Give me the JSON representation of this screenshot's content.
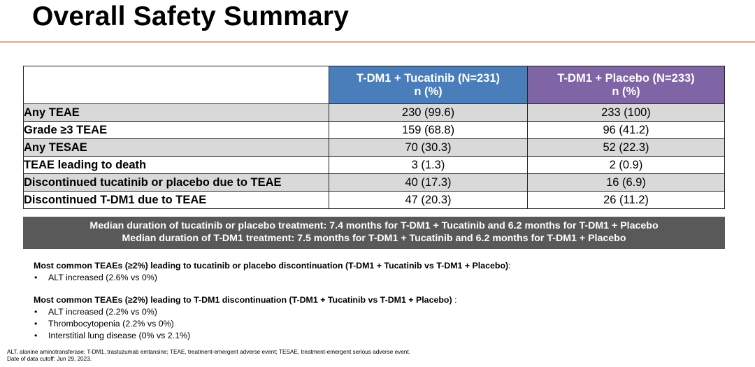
{
  "title": "Overall Safety Summary",
  "table": {
    "columns": [
      {
        "name": "T-DM1 + Tucatinib (N=231)",
        "unit": "n (%)"
      },
      {
        "name": "T-DM1 + Placebo (N=233)",
        "unit": "n (%)"
      }
    ],
    "rows": [
      {
        "label": "Any TEAE",
        "a": "230 (99.6)",
        "b": "233 (100)"
      },
      {
        "label": "Grade ≥3 TEAE",
        "a": "159 (68.8)",
        "b": "96 (41.2)"
      },
      {
        "label": "Any TESAE",
        "a": "70 (30.3)",
        "b": "52 (22.3)"
      },
      {
        "label": "TEAE leading to death",
        "a": "3 (1.3)",
        "b": "2 (0.9)"
      },
      {
        "label": "Discontinued tucatinib or placebo due to TEAE",
        "a": "40 (17.3)",
        "b": "16 (6.9)"
      },
      {
        "label": "Discontinued T-DM1 due to TEAE",
        "a": "47 (20.3)",
        "b": "26 (11.2)"
      }
    ],
    "header_colors": {
      "blank": "#ffffff",
      "col_a": "#4a7ebb",
      "col_b": "#7f64a6"
    },
    "shade_color": "#d9d9d9"
  },
  "banner": {
    "line1": "Median duration of tucatinib or placebo treatment: 7.4 months for T-DM1 + Tucatinib and 6.2 months for T-DM1 + Placebo",
    "line2": "Median duration of T-DM1 treatment: 7.5 months for T-DM1 + Tucatinib and 6.2 months for T-DM1 + Placebo"
  },
  "notes": [
    {
      "heading": "Most common TEAEs (≥2%) leading to tucatinib or placebo discontinuation (T-DM1 + Tucatinib vs T-DM1 + Placebo)",
      "suffix": ":",
      "items": [
        "ALT increased (2.6% vs 0%)"
      ]
    },
    {
      "heading": "Most common TEAEs (≥2%) leading to T-DM1 discontinuation (T-DM1 + Tucatinib vs T-DM1 + Placebo)",
      "suffix": " :",
      "items": [
        "ALT increased (2.2% vs 0%)",
        "Thrombocytopenia (2.2% vs 0%)",
        "Interstitial lung disease (0% vs 2.1%)"
      ]
    }
  ],
  "footnote": {
    "abbrev": "ALT, alanine aminotransferase; T-DM1, trastuzumab emtansine; TEAE, treatment-emergent adverse event; TESAE, treatment-emergent serious adverse event.",
    "cutoff": "Date of data cutoff: Jun 29, 2023."
  }
}
